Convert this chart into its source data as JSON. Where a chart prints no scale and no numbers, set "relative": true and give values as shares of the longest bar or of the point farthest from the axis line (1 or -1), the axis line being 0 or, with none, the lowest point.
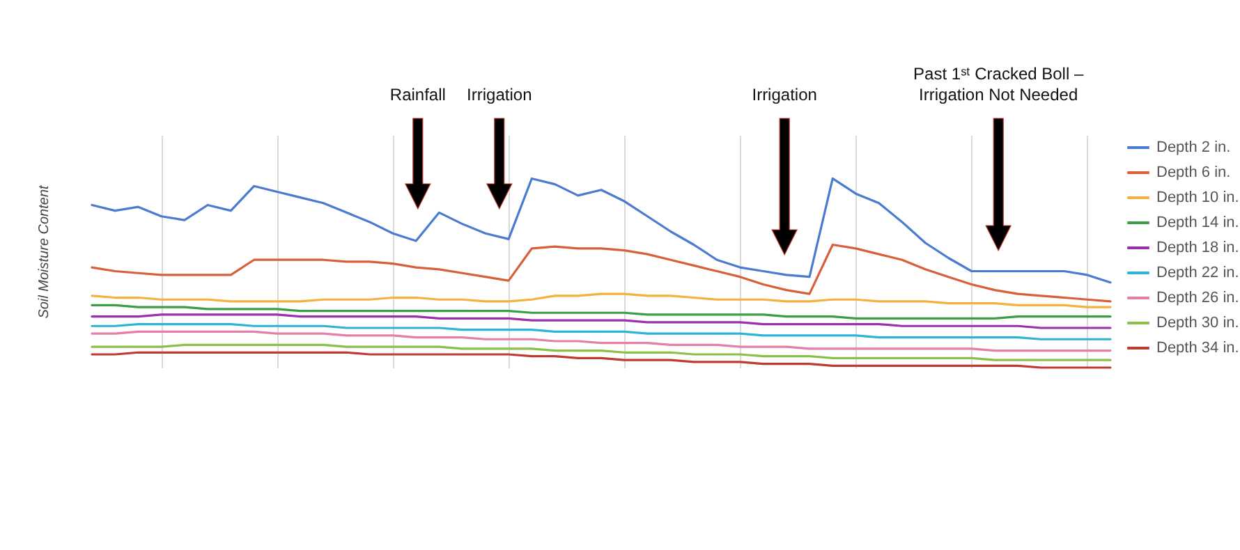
{
  "chart_data": {
    "type": "line",
    "relative": true,
    "ylabel": "Soil Moisture Content",
    "legend": "right",
    "grid": "x",
    "marker": "none",
    "line_style": "solid",
    "categories": [
      null,
      null,
      null,
      null,
      null,
      null,
      null,
      null,
      null,
      null,
      null,
      null,
      null,
      null,
      null,
      null,
      null,
      null,
      null,
      null,
      null,
      null,
      null,
      null,
      null,
      null,
      null,
      null,
      null,
      null,
      null,
      null,
      null,
      null,
      null,
      null,
      null,
      null,
      null,
      null,
      null,
      null,
      null,
      null,
      null
    ],
    "annotations": [
      "Rainfall",
      "Irrigation",
      "Irrigation",
      "Past 1ˢᵗ Cracked Boll –\nIrrigation Not Needed"
    ],
    "series": [
      {
        "name": "Depth 2 in.",
        "color": "#4a7bd0",
        "values": [
          0.86,
          0.83,
          0.85,
          0.8,
          0.78,
          0.86,
          0.83,
          0.96,
          0.93,
          0.9,
          0.87,
          0.82,
          0.77,
          0.71,
          0.67,
          0.82,
          0.76,
          0.71,
          0.68,
          1.0,
          0.97,
          0.91,
          0.94,
          0.88,
          0.8,
          0.72,
          0.65,
          0.57,
          0.53,
          0.51,
          0.49,
          0.48,
          1.0,
          0.92,
          0.87,
          0.77,
          0.66,
          0.58,
          0.51,
          0.51,
          0.51,
          0.51,
          0.51,
          0.49,
          0.45
        ]
      },
      {
        "name": "Depth 6 in.",
        "color": "#d95f3b",
        "values": [
          0.53,
          0.51,
          0.5,
          0.49,
          0.49,
          0.49,
          0.49,
          0.57,
          0.57,
          0.57,
          0.57,
          0.56,
          0.56,
          0.55,
          0.53,
          0.52,
          0.5,
          0.48,
          0.46,
          0.63,
          0.64,
          0.63,
          0.63,
          0.62,
          0.6,
          0.57,
          0.54,
          0.51,
          0.48,
          0.44,
          0.41,
          0.39,
          0.65,
          0.63,
          0.6,
          0.57,
          0.52,
          0.48,
          0.44,
          0.41,
          0.39,
          0.38,
          0.37,
          0.36,
          0.35
        ]
      },
      {
        "name": "Depth 10 in.",
        "color": "#f4b13e",
        "values": [
          0.38,
          0.37,
          0.37,
          0.36,
          0.36,
          0.36,
          0.35,
          0.35,
          0.35,
          0.35,
          0.36,
          0.36,
          0.36,
          0.37,
          0.37,
          0.36,
          0.36,
          0.35,
          0.35,
          0.36,
          0.38,
          0.38,
          0.39,
          0.39,
          0.38,
          0.38,
          0.37,
          0.36,
          0.36,
          0.36,
          0.35,
          0.35,
          0.36,
          0.36,
          0.35,
          0.35,
          0.35,
          0.34,
          0.34,
          0.34,
          0.33,
          0.33,
          0.33,
          0.32,
          0.32
        ]
      },
      {
        "name": "Depth 14 in.",
        "color": "#3a9e48",
        "values": [
          0.33,
          0.33,
          0.32,
          0.32,
          0.32,
          0.31,
          0.31,
          0.31,
          0.31,
          0.3,
          0.3,
          0.3,
          0.3,
          0.3,
          0.3,
          0.3,
          0.3,
          0.3,
          0.3,
          0.29,
          0.29,
          0.29,
          0.29,
          0.29,
          0.28,
          0.28,
          0.28,
          0.28,
          0.28,
          0.28,
          0.27,
          0.27,
          0.27,
          0.26,
          0.26,
          0.26,
          0.26,
          0.26,
          0.26,
          0.26,
          0.27,
          0.27,
          0.27,
          0.27,
          0.27
        ]
      },
      {
        "name": "Depth 18 in.",
        "color": "#9c2fae",
        "values": [
          0.27,
          0.27,
          0.27,
          0.28,
          0.28,
          0.28,
          0.28,
          0.28,
          0.28,
          0.27,
          0.27,
          0.27,
          0.27,
          0.27,
          0.27,
          0.26,
          0.26,
          0.26,
          0.26,
          0.25,
          0.25,
          0.25,
          0.25,
          0.25,
          0.24,
          0.24,
          0.24,
          0.24,
          0.24,
          0.23,
          0.23,
          0.23,
          0.23,
          0.23,
          0.23,
          0.22,
          0.22,
          0.22,
          0.22,
          0.22,
          0.22,
          0.21,
          0.21,
          0.21,
          0.21
        ]
      },
      {
        "name": "Depth 22 in.",
        "color": "#2cb3d5",
        "values": [
          0.22,
          0.22,
          0.23,
          0.23,
          0.23,
          0.23,
          0.23,
          0.22,
          0.22,
          0.22,
          0.22,
          0.21,
          0.21,
          0.21,
          0.21,
          0.21,
          0.2,
          0.2,
          0.2,
          0.2,
          0.19,
          0.19,
          0.19,
          0.19,
          0.18,
          0.18,
          0.18,
          0.18,
          0.18,
          0.17,
          0.17,
          0.17,
          0.17,
          0.17,
          0.16,
          0.16,
          0.16,
          0.16,
          0.16,
          0.16,
          0.16,
          0.15,
          0.15,
          0.15,
          0.15
        ]
      },
      {
        "name": "Depth 26 in.",
        "color": "#e37fa8",
        "values": [
          0.18,
          0.18,
          0.19,
          0.19,
          0.19,
          0.19,
          0.19,
          0.19,
          0.18,
          0.18,
          0.18,
          0.17,
          0.17,
          0.17,
          0.16,
          0.16,
          0.16,
          0.15,
          0.15,
          0.15,
          0.14,
          0.14,
          0.13,
          0.13,
          0.13,
          0.12,
          0.12,
          0.12,
          0.11,
          0.11,
          0.11,
          0.1,
          0.1,
          0.1,
          0.1,
          0.1,
          0.1,
          0.1,
          0.1,
          0.09,
          0.09,
          0.09,
          0.09,
          0.09,
          0.09
        ]
      },
      {
        "name": "Depth 30 in.",
        "color": "#8bbf48",
        "values": [
          0.11,
          0.11,
          0.11,
          0.11,
          0.12,
          0.12,
          0.12,
          0.12,
          0.12,
          0.12,
          0.12,
          0.11,
          0.11,
          0.11,
          0.11,
          0.11,
          0.1,
          0.1,
          0.1,
          0.1,
          0.09,
          0.09,
          0.09,
          0.08,
          0.08,
          0.08,
          0.07,
          0.07,
          0.07,
          0.06,
          0.06,
          0.06,
          0.05,
          0.05,
          0.05,
          0.05,
          0.05,
          0.05,
          0.05,
          0.04,
          0.04,
          0.04,
          0.04,
          0.04,
          0.04
        ]
      },
      {
        "name": "Depth 34 in.",
        "color": "#bf3a30",
        "values": [
          0.07,
          0.07,
          0.08,
          0.08,
          0.08,
          0.08,
          0.08,
          0.08,
          0.08,
          0.08,
          0.08,
          0.08,
          0.07,
          0.07,
          0.07,
          0.07,
          0.07,
          0.07,
          0.07,
          0.06,
          0.06,
          0.05,
          0.05,
          0.04,
          0.04,
          0.04,
          0.03,
          0.03,
          0.03,
          0.02,
          0.02,
          0.02,
          0.01,
          0.01,
          0.01,
          0.01,
          0.01,
          0.01,
          0.01,
          0.01,
          0.01,
          0,
          0,
          0,
          0
        ]
      }
    ]
  }
}
